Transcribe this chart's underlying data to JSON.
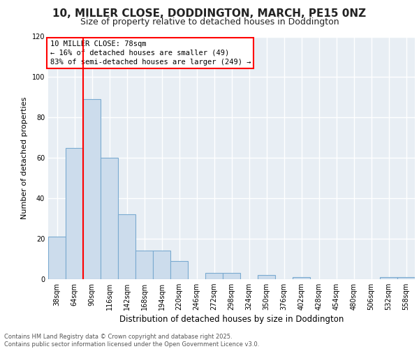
{
  "title_line1": "10, MILLER CLOSE, DODDINGTON, MARCH, PE15 0NZ",
  "title_line2": "Size of property relative to detached houses in Doddington",
  "xlabel": "Distribution of detached houses by size in Doddington",
  "ylabel": "Number of detached properties",
  "categories": [
    "38sqm",
    "64sqm",
    "90sqm",
    "116sqm",
    "142sqm",
    "168sqm",
    "194sqm",
    "220sqm",
    "246sqm",
    "272sqm",
    "298sqm",
    "324sqm",
    "350sqm",
    "376sqm",
    "402sqm",
    "428sqm",
    "454sqm",
    "480sqm",
    "506sqm",
    "532sqm",
    "558sqm"
  ],
  "values": [
    21,
    65,
    89,
    60,
    32,
    14,
    14,
    9,
    0,
    3,
    3,
    0,
    2,
    0,
    1,
    0,
    0,
    0,
    0,
    1,
    1
  ],
  "bar_color": "#ccdcec",
  "bar_edge_color": "#7aaad0",
  "vline_x": 1.5,
  "vline_color": "red",
  "ylim": [
    0,
    120
  ],
  "yticks": [
    0,
    20,
    40,
    60,
    80,
    100,
    120
  ],
  "annotation_text": "10 MILLER CLOSE: 78sqm\n← 16% of detached houses are smaller (49)\n83% of semi-detached houses are larger (249) →",
  "annotation_box_color": "white",
  "annotation_box_edge_color": "red",
  "footer_text": "Contains HM Land Registry data © Crown copyright and database right 2025.\nContains public sector information licensed under the Open Government Licence v3.0.",
  "bg_color": "#e8eef4",
  "plot_bg_color": "#e8eef4",
  "fig_bg_color": "#ffffff",
  "grid_color": "#ffffff",
  "title_fontsize": 11,
  "subtitle_fontsize": 9,
  "ylabel_fontsize": 8,
  "xlabel_fontsize": 8.5,
  "tick_fontsize": 7,
  "annotation_fontsize": 7.5,
  "footer_fontsize": 6
}
